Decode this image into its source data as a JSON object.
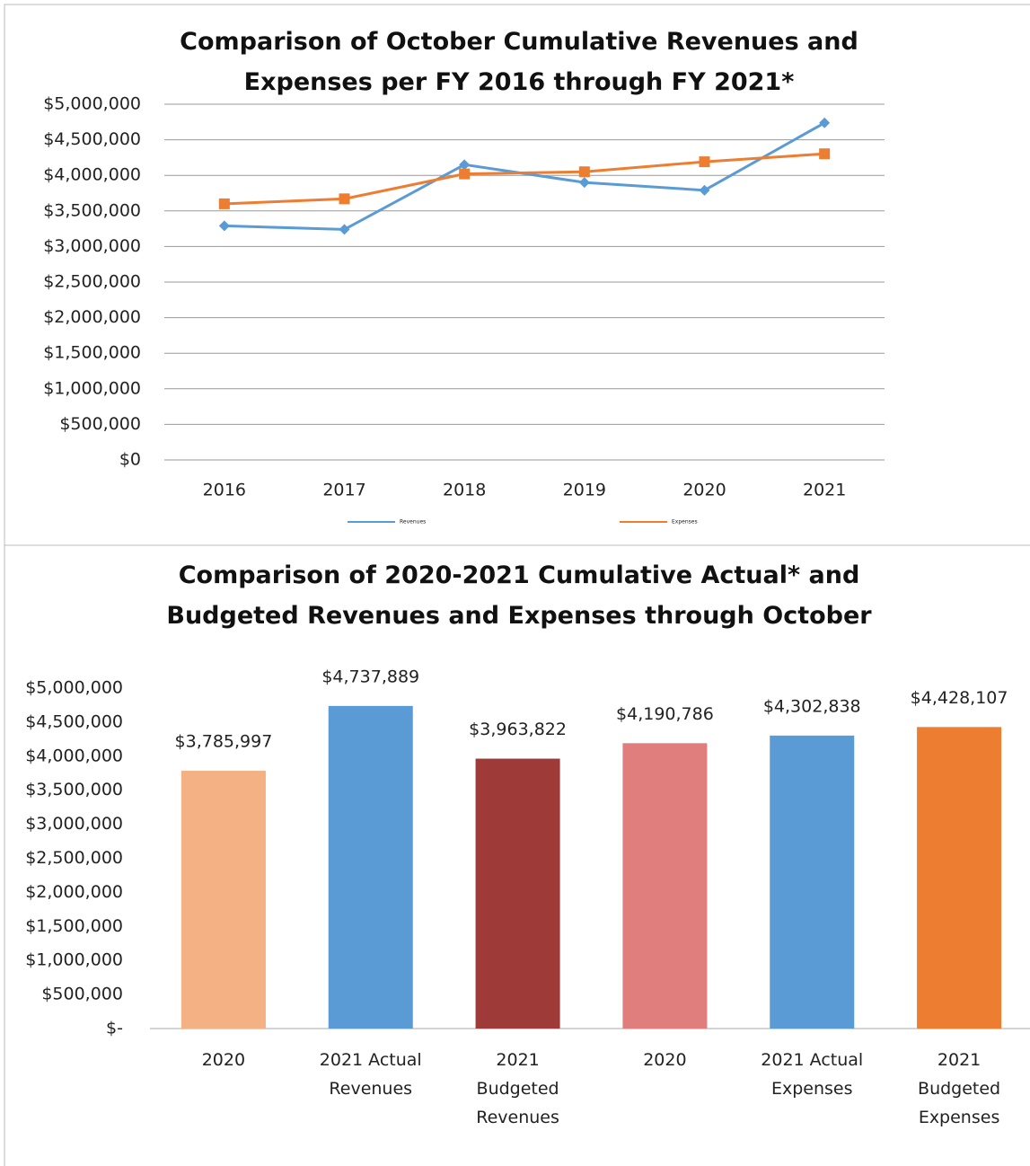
{
  "chart_data": [
    {
      "type": "line",
      "title": "Comparison of October Cumulative Revenues and Expenses per FY 2016 through FY 2021*",
      "categories": [
        "2016",
        "2017",
        "2018",
        "2019",
        "2020",
        "2021"
      ],
      "series": [
        {
          "name": "Revenues",
          "color": "#5b9bd5",
          "marker": "diamond",
          "values": [
            3290000,
            3240000,
            4150000,
            3900000,
            3790000,
            4737889
          ]
        },
        {
          "name": "Expenses",
          "color": "#ed7d31",
          "marker": "square",
          "values": [
            3600000,
            3670000,
            4020000,
            4050000,
            4190786,
            4302838
          ]
        }
      ],
      "ylim": [
        0,
        5000000
      ],
      "yticks": [
        {
          "value": 0,
          "label": "$0"
        },
        {
          "value": 500000,
          "label": "$500,000"
        },
        {
          "value": 1000000,
          "label": "$1,000,000"
        },
        {
          "value": 1500000,
          "label": "$1,500,000"
        },
        {
          "value": 2000000,
          "label": "$2,000,000"
        },
        {
          "value": 2500000,
          "label": "$2,500,000"
        },
        {
          "value": 3000000,
          "label": "$3,000,000"
        },
        {
          "value": 3500000,
          "label": "$3,500,000"
        },
        {
          "value": 4000000,
          "label": "$4,000,000"
        },
        {
          "value": 4500000,
          "label": "$4,500,000"
        },
        {
          "value": 5000000,
          "label": "$5,000,000"
        }
      ],
      "grid": true,
      "legend": "bottom"
    },
    {
      "type": "bar",
      "title": "Comparison of 2020-2021 Cumulative Actual* and Budgeted Revenues and Expenses through October",
      "categories": [
        "2020",
        "2021 Actual Revenues",
        "2021 Budgeted Revenues",
        "2020",
        "2021 Actual Expenses",
        "2021 Budgeted Expenses"
      ],
      "values": [
        3785997,
        4737889,
        3963822,
        4190786,
        4302838,
        4428107
      ],
      "value_labels": [
        "$3,785,997",
        "$4,737,889",
        "$3,963,822",
        "$4,190,786",
        "$4,302,838",
        "$4,428,107"
      ],
      "colors": [
        "#f4b183",
        "#5b9bd5",
        "#9e3a38",
        "#e07d7d",
        "#5b9bd5",
        "#ed7d31"
      ],
      "ylim": [
        0,
        5000000
      ],
      "yticks": [
        {
          "value": 0,
          "label": "$-"
        },
        {
          "value": 500000,
          "label": "$500,000"
        },
        {
          "value": 1000000,
          "label": "$1,000,000"
        },
        {
          "value": 1500000,
          "label": "$1,500,000"
        },
        {
          "value": 2000000,
          "label": "$2,000,000"
        },
        {
          "value": 2500000,
          "label": "$2,500,000"
        },
        {
          "value": 3000000,
          "label": "$3,000,000"
        },
        {
          "value": 3500000,
          "label": "$3,500,000"
        },
        {
          "value": 4000000,
          "label": "$4,000,000"
        },
        {
          "value": 4500000,
          "label": "$4,500,000"
        },
        {
          "value": 5000000,
          "label": "$5,000,000"
        }
      ],
      "grid": false
    }
  ]
}
